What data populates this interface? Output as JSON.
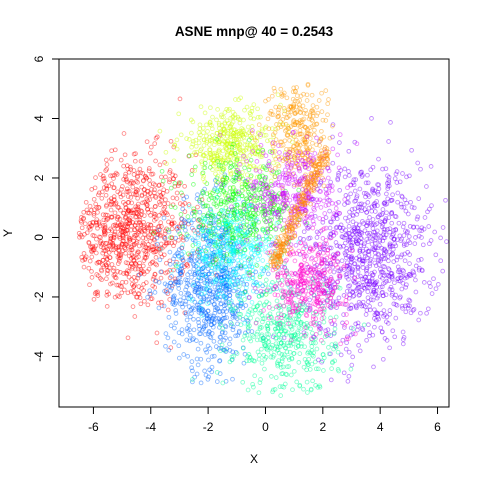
{
  "chart_data": {
    "type": "scatter",
    "title": "ASNE mnp@ 40 = 0.2543",
    "xlabel": "X",
    "ylabel": "Y",
    "xlim": [
      -7.2,
      6.4
    ],
    "ylim": [
      -5.7,
      6.0
    ],
    "xticks": [
      -6,
      -4,
      -2,
      0,
      2,
      4,
      6
    ],
    "yticks": [
      -4,
      -2,
      0,
      2,
      4,
      6
    ],
    "grid": false,
    "legend": "none",
    "marker": "open circle",
    "series": [
      {
        "color": "#ff0000",
        "points_approx": 900,
        "center": [
          -4.8,
          0.2
        ],
        "spread": [
          1.1,
          1.3
        ]
      },
      {
        "color": "#0066ff",
        "points_approx": 700,
        "center": [
          -1.9,
          -1.6
        ],
        "spread": [
          0.8,
          1.4
        ]
      },
      {
        "color": "#7700ff",
        "points_approx": 900,
        "center": [
          3.6,
          -0.6
        ],
        "spread": [
          1.1,
          1.6
        ]
      },
      {
        "color": "#ccff00",
        "points_approx": 400,
        "center": [
          -1.2,
          3.1
        ],
        "spread": [
          0.9,
          0.6
        ]
      },
      {
        "color": "#00ff00",
        "points_approx": 450,
        "center": [
          -0.9,
          0.9
        ],
        "spread": [
          0.9,
          0.8
        ]
      },
      {
        "color": "#00ff99",
        "points_approx": 450,
        "center": [
          0.7,
          -3.3
        ],
        "spread": [
          0.9,
          1.0
        ]
      },
      {
        "color": "#00ffff",
        "points_approx": 350,
        "center": [
          -1.2,
          -0.6
        ],
        "spread": [
          0.8,
          0.8
        ]
      },
      {
        "color": "#ff00cc",
        "points_approx": 350,
        "center": [
          1.5,
          -1.5
        ],
        "spread": [
          0.7,
          0.7
        ]
      },
      {
        "color": "#ff9900",
        "points_approx": 300,
        "center": [
          1.1,
          3.5
        ],
        "spread": [
          0.5,
          1.0
        ]
      },
      {
        "color": "#cc00ff",
        "points_approx": 350,
        "center": [
          1.0,
          1.5
        ],
        "spread": [
          0.8,
          0.9
        ]
      },
      {
        "color": "#ff8800",
        "points_approx": 250,
        "center": [
          1.2,
          1.0
        ],
        "spread": [
          0.7,
          1.6
        ],
        "shape": "diagonal-band"
      }
    ]
  }
}
